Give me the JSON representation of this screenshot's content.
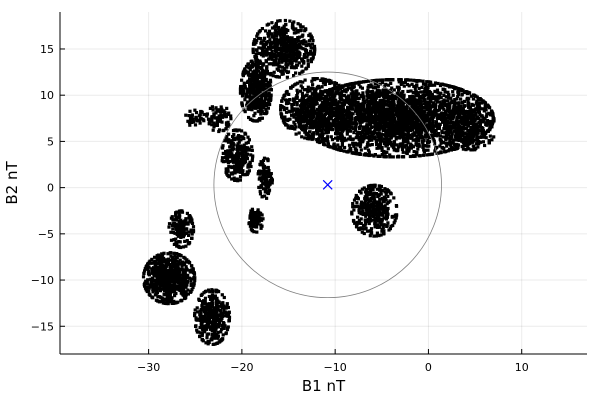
{
  "chart_data": {
    "type": "scatter",
    "title": "",
    "xlabel": "B1 nT",
    "ylabel": "B2 nT",
    "xlim": [
      -39.5,
      17
    ],
    "ylim": [
      -18,
      19
    ],
    "xticks": [
      -30,
      -20,
      -10,
      0,
      10
    ],
    "yticks": [
      -15,
      -10,
      -5,
      0,
      5,
      10,
      15
    ],
    "xtick_labels": [
      "−30",
      "−20",
      "−10",
      "0",
      "10"
    ],
    "ytick_labels": [
      "−15",
      "−10",
      "−5",
      "0",
      "5",
      "10",
      "15"
    ],
    "grid": true,
    "legend": "none",
    "circle": {
      "center": [
        -10.8,
        0.3
      ],
      "radius": 12.2,
      "color": "#808080"
    },
    "center_marker": {
      "x": -10.8,
      "y": 0.3,
      "symbol": "x",
      "color": "#0000ff"
    },
    "series": [
      {
        "color": "#000000",
        "point_clusters": [
          {
            "cx": -3.5,
            "cy": 7.5,
            "rx": 9.5,
            "ry": 3.8,
            "n": 2600
          },
          {
            "cx": -12,
            "cy": 8.5,
            "rx": 3.5,
            "ry": 3,
            "n": 600
          },
          {
            "cx": -15.5,
            "cy": 15.0,
            "rx": 3,
            "ry": 2.8,
            "n": 500
          },
          {
            "cx": -18.5,
            "cy": 10.5,
            "rx": 1.5,
            "ry": 3,
            "n": 400
          },
          {
            "cx": -20.5,
            "cy": 3.5,
            "rx": 1.5,
            "ry": 2.5,
            "n": 250
          },
          {
            "cx": -17.5,
            "cy": 1.0,
            "rx": 0.7,
            "ry": 2,
            "n": 100
          },
          {
            "cx": -18.5,
            "cy": -3.5,
            "rx": 0.7,
            "ry": 1.2,
            "n": 80
          },
          {
            "cx": -5.8,
            "cy": -2.5,
            "rx": 2.2,
            "ry": 2.5,
            "n": 350
          },
          {
            "cx": -27.8,
            "cy": -9.8,
            "rx": 2.5,
            "ry": 2.5,
            "n": 650
          },
          {
            "cx": -23.2,
            "cy": -14.0,
            "rx": 1.7,
            "ry": 2.7,
            "n": 350
          },
          {
            "cx": -26.5,
            "cy": -4.5,
            "rx": 1.2,
            "ry": 1.8,
            "n": 150
          },
          {
            "cx": 4.5,
            "cy": 6.5,
            "rx": 2.5,
            "ry": 2.2,
            "n": 300
          },
          {
            "cx": -22.5,
            "cy": 7.5,
            "rx": 1.2,
            "ry": 1.3,
            "n": 80
          },
          {
            "cx": -25,
            "cy": 7.5,
            "rx": 1.0,
            "ry": 0.8,
            "n": 40
          }
        ]
      }
    ]
  }
}
